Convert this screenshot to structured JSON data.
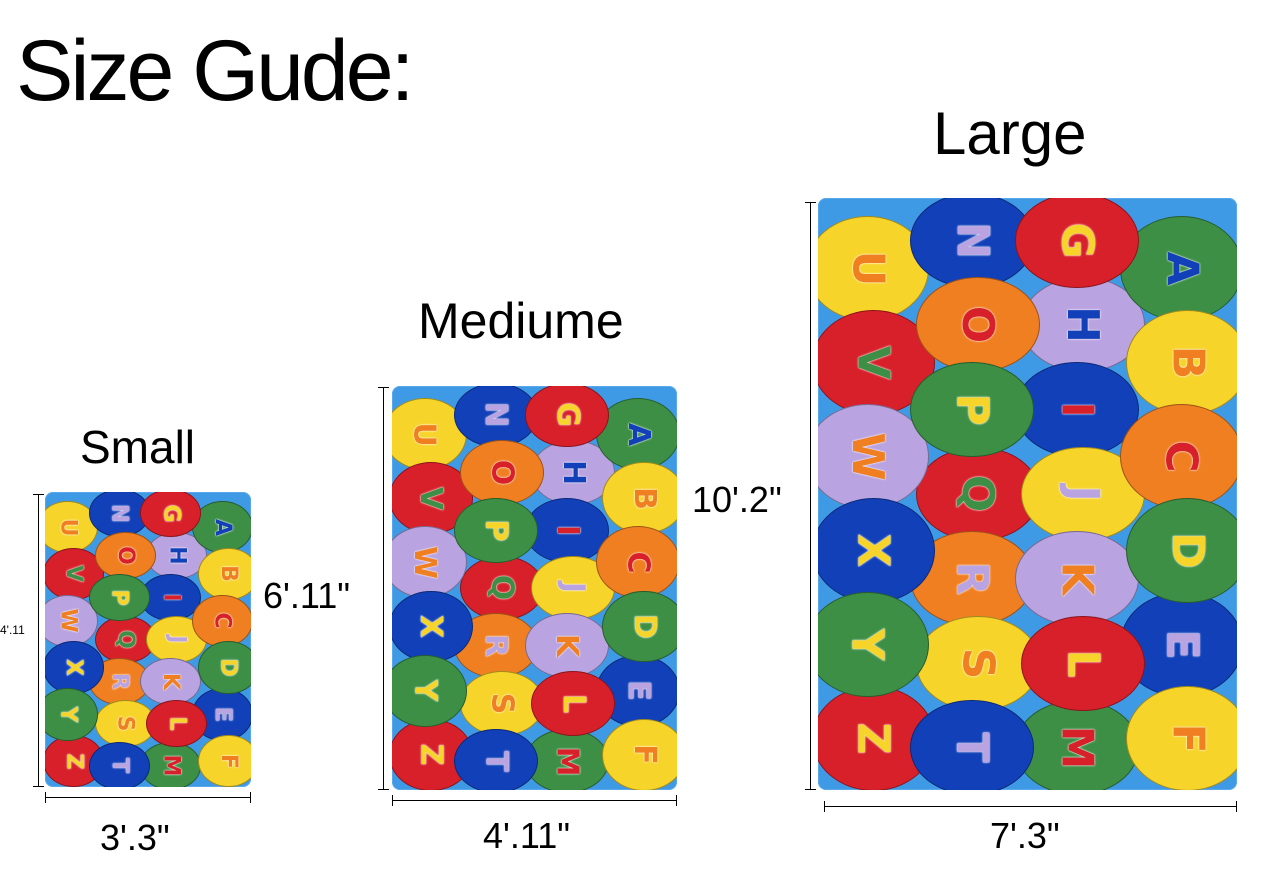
{
  "title": "Size Gude:",
  "sizes": {
    "small": {
      "label": "Small",
      "width": "3'.3\"",
      "length": "4'.11"
    },
    "medium": {
      "label": "Mediume",
      "width": "4'.11\"",
      "length": "6'.11\""
    },
    "large": {
      "label": "Large",
      "width": "7'.3\"",
      "length": "10'.2\""
    }
  },
  "colors": {
    "rug_background": "#3f9ae6",
    "yellow": "#f7d42a",
    "red": "#d8202a",
    "green": "#3d8f45",
    "blue": "#1240b8",
    "orange": "#f07f22",
    "lavender": "#b9a3e0"
  },
  "rug_columns": [
    [
      [
        "U",
        "yellow",
        "orange"
      ],
      [
        "V",
        "red",
        "green"
      ],
      [
        "W",
        "lavender",
        "orange"
      ],
      [
        "X",
        "blue",
        "yellow"
      ],
      [
        "Y",
        "green",
        "yellow"
      ],
      [
        "Z",
        "red",
        "yellow"
      ]
    ],
    [
      [
        "N",
        "blue",
        "lavender"
      ],
      [
        "O",
        "orange",
        "red"
      ],
      [
        "P",
        "green",
        "yellow"
      ],
      [
        "Q",
        "red",
        "green"
      ],
      [
        "R",
        "orange",
        "lavender"
      ],
      [
        "S",
        "yellow",
        "orange"
      ],
      [
        "T",
        "blue",
        "lavender"
      ]
    ],
    [
      [
        "G",
        "red",
        "yellow"
      ],
      [
        "H",
        "lavender",
        "blue"
      ],
      [
        "I",
        "blue",
        "red"
      ],
      [
        "J",
        "yellow",
        "lavender"
      ],
      [
        "K",
        "lavender",
        "orange"
      ],
      [
        "L",
        "red",
        "yellow"
      ],
      [
        "M",
        "green",
        "red"
      ]
    ],
    [
      [
        "A",
        "green",
        "blue"
      ],
      [
        "B",
        "yellow",
        "orange"
      ],
      [
        "C",
        "orange",
        "red"
      ],
      [
        "D",
        "green",
        "yellow"
      ],
      [
        "E",
        "blue",
        "lavender"
      ],
      [
        "F",
        "yellow",
        "orange"
      ]
    ]
  ]
}
